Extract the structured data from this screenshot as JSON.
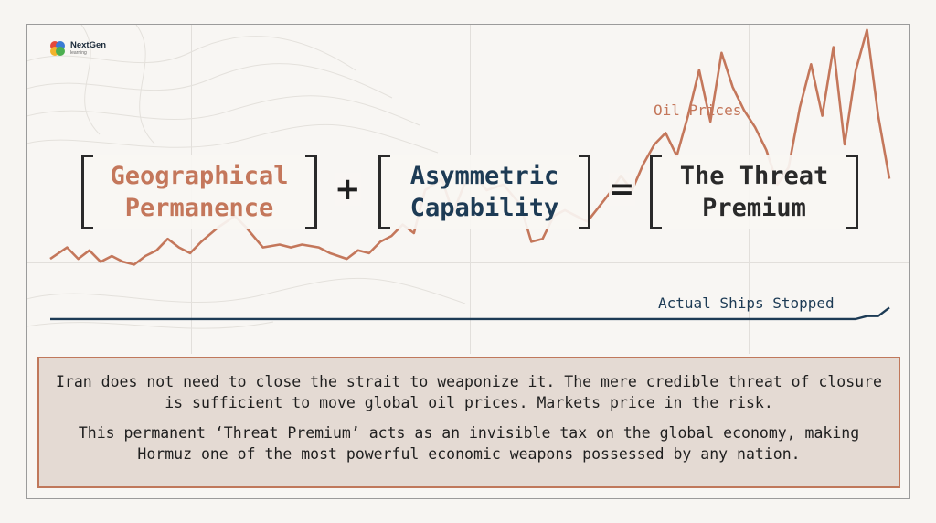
{
  "logo": {
    "name": "NextGen",
    "tagline": "learning"
  },
  "equation": {
    "term1": "Geographical\nPermanence",
    "op1": "+",
    "term2": "Asymmetric\nCapability",
    "op2": "=",
    "result": "The Threat\nPremium"
  },
  "colors": {
    "oil": "#c4775b",
    "ships": "#1d3b55",
    "text": "#1f1f1f",
    "result": "#2a2a2a"
  },
  "chart_data": {
    "type": "line",
    "xlim": [
      0,
      150
    ],
    "ylim": [
      0,
      100
    ],
    "grid": true,
    "series": [
      {
        "name": "Oil Prices",
        "color": "#c4775b",
        "x": [
          0,
          3,
          5,
          7,
          9,
          11,
          13,
          15,
          17,
          19,
          21,
          23,
          25,
          27,
          30,
          33,
          35,
          38,
          41,
          43,
          45,
          48,
          50,
          53,
          55,
          57,
          59,
          61,
          63,
          65,
          67,
          70,
          72,
          74,
          76,
          78,
          81,
          84,
          86,
          88,
          90,
          92,
          94,
          96,
          98,
          100,
          102,
          104,
          106,
          108,
          110,
          112,
          114,
          116,
          118,
          120,
          122,
          124,
          126,
          128,
          130,
          132,
          134,
          136,
          138,
          140,
          142,
          144,
          146,
          148,
          150
        ],
        "y": [
          22,
          26,
          22,
          25,
          21,
          23,
          21,
          20,
          23,
          25,
          29,
          26,
          24,
          28,
          33,
          37,
          33,
          26,
          27,
          26,
          27,
          26,
          24,
          22,
          25,
          24,
          28,
          30,
          34,
          31,
          46,
          50,
          38,
          48,
          51,
          46,
          48,
          41,
          28,
          29,
          37,
          39,
          37,
          35,
          40,
          45,
          51,
          46,
          55,
          62,
          66,
          58,
          72,
          88,
          70,
          94,
          82,
          74,
          68,
          60,
          48,
          54,
          75,
          90,
          72,
          96,
          62,
          88,
          102,
          72,
          50
        ]
      },
      {
        "name": "Actual Ships Stopped",
        "color": "#1d3b55",
        "x": [
          0,
          20,
          40,
          60,
          80,
          100,
          120,
          140,
          144,
          146,
          148,
          150
        ],
        "y": [
          1,
          1,
          1,
          1,
          1,
          1,
          1,
          1,
          1,
          2,
          2,
          5
        ]
      }
    ]
  },
  "body": {
    "paragraph1": "Iran does not need to close the strait to weaponize it. The mere credible threat of closure is sufficient to move global oil prices. Markets price in the risk.",
    "paragraph2": "This permanent ‘Threat Premium’ acts as an invisible tax on the global economy, making Hormuz one of the most powerful economic weapons possessed by any nation."
  }
}
